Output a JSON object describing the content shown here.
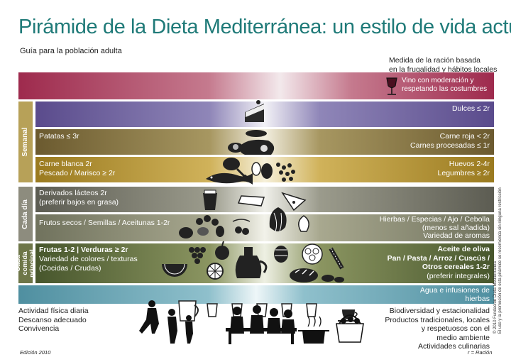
{
  "header": {
    "title": "Pirámide de la Dieta Mediterránea: un estilo de vida actual",
    "subtitle": "Guía para la población adulta",
    "ration_note_line1": "Medida de la ración basada",
    "ration_note_line2": "en la frugalidad y hábitos locales"
  },
  "side_labels": {
    "semanal": "Semanal",
    "cada_dia": "Cada día",
    "cada_comida": "Cada comida principal"
  },
  "wine": {
    "line1": "Vino con moderación y",
    "line2": "respetando las costumbres"
  },
  "rows": {
    "dulces_right": "Dulces ≤ 2r",
    "patatas_left": "Patatas ≤ 3r",
    "carne_roja_right": "Carne roja < 2r",
    "carnes_procesadas_right": "Carnes procesadas ≤ 1r",
    "carne_blanca_left": "Carne blanca 2r",
    "pescado_left": "Pescado / Marisco ≥ 2r",
    "huevos_right": "Huevos 2-4r",
    "legumbres_right": "Legumbres ≥ 2r",
    "lacteos_left1": "Derivados lácteos 2r",
    "lacteos_left2": "(preferir bajos en grasa)",
    "frutos_left": "Frutos secos / Semillas / Aceitunas 1-2r",
    "hierbas_right1": "Hierbas / Especias / Ajo / Cebolla",
    "hierbas_right2": "(menos sal añadida)",
    "hierbas_right3": "Variedad de aromas",
    "frutas_left1": "Frutas 1-2 | Verduras ≥ 2r",
    "frutas_left2": "Variedad de colores / texturas",
    "frutas_left3": "(Cocidas / Crudas)",
    "aceite_right1": "Aceite de oliva",
    "aceite_right2": "Pan / Pasta / Arroz / Cuscús /",
    "aceite_right3": "Otros cereales 1-2r",
    "aceite_right4": "(preferir integrales)",
    "agua_right1": "Agua e infusiones de",
    "agua_right2": "hierbas"
  },
  "bottom_left": [
    "Actividad física diaria",
    "Descanso adecuado",
    "Convivencia"
  ],
  "bottom_right": [
    "Biodiversidad y estacionalidad",
    "Productos tradicionales, locales",
    "y respetuosos con el",
    "medio ambiente",
    "Actividades culinarias"
  ],
  "footer": {
    "edition": "Edición 2010",
    "legend": "r = Ración"
  },
  "credit": {
    "line1": "© 2010 Fundación Dieta Mediterránea",
    "line2": "El uso y la promoción de esta pirámide se recomienda sin ninguna restricción"
  }
}
